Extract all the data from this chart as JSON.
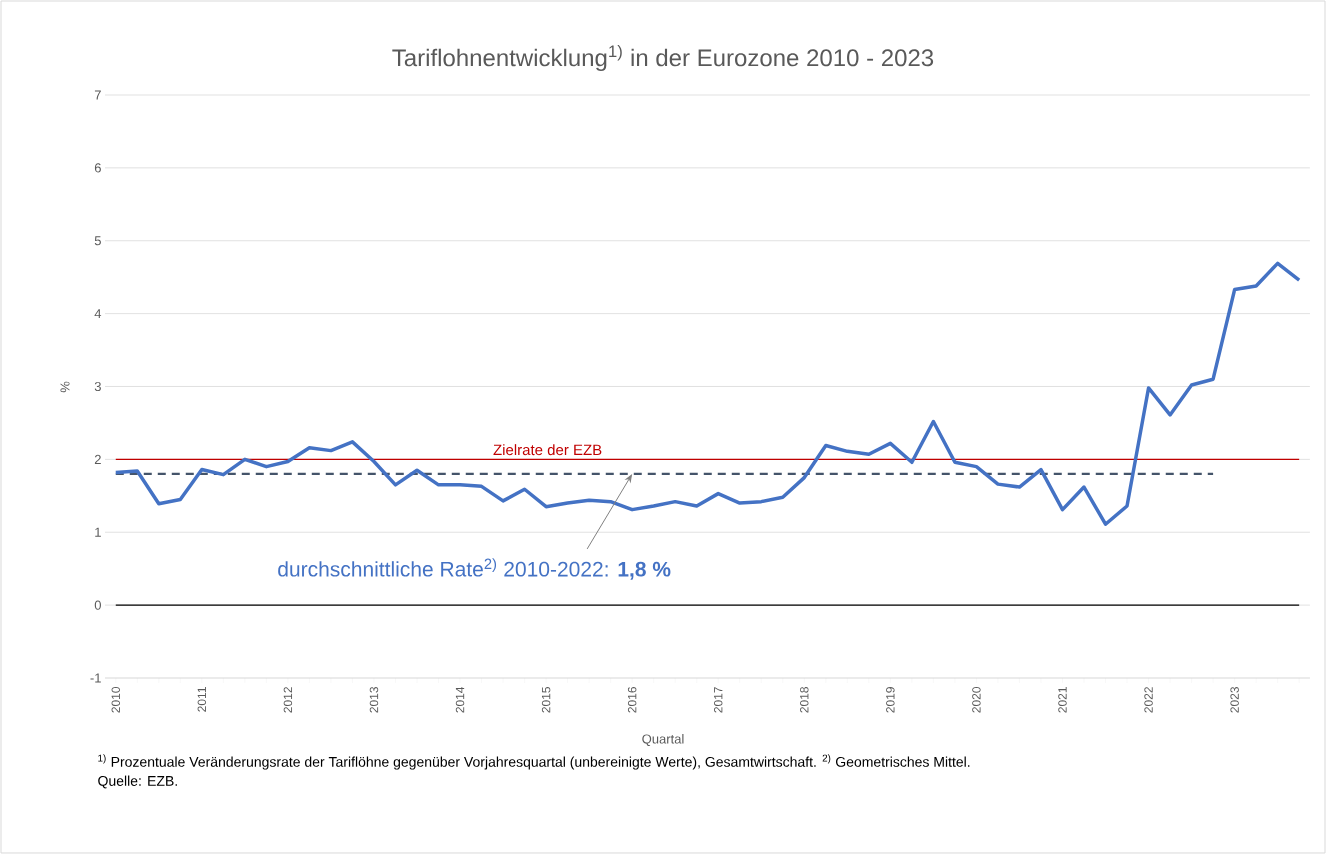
{
  "chart_data": {
    "type": "line",
    "title": "Tariflohnentwicklung$^{1)}$ in der Eurozone 2010 - 2023",
    "xlabel": "Quartal",
    "ylabel": "%",
    "categories": [
      "2010",
      null,
      null,
      null,
      "2011",
      null,
      null,
      null,
      "2012",
      null,
      null,
      null,
      "2013",
      null,
      null,
      null,
      "2014",
      null,
      null,
      null,
      "2015",
      null,
      null,
      null,
      "2016",
      null,
      null,
      null,
      "2017",
      null,
      null,
      null,
      "2018",
      null,
      null,
      null,
      "2019",
      null,
      null,
      null,
      "2020",
      null,
      null,
      null,
      "2021",
      null,
      null,
      null,
      "2022",
      null,
      null,
      null,
      "2023",
      null,
      null,
      null
    ],
    "series": [
      {
        "color": "#4472c4",
        "values": [
          1.82,
          1.84,
          1.39,
          1.45,
          1.86,
          1.79,
          2.0,
          1.9,
          1.97,
          2.16,
          2.12,
          2.24,
          1.97,
          1.65,
          1.85,
          1.65,
          1.65,
          1.63,
          1.43,
          1.59,
          1.35,
          1.4,
          1.44,
          1.42,
          1.31,
          1.36,
          1.42,
          1.36,
          1.53,
          1.4,
          1.42,
          1.48,
          1.75,
          2.19,
          2.11,
          2.07,
          2.22,
          1.96,
          2.52,
          1.96,
          1.9,
          1.66,
          1.62,
          1.86,
          1.31,
          1.62,
          1.11,
          1.36,
          2.98,
          2.61,
          3.02,
          3.1,
          4.33,
          4.38,
          4.69,
          4.46
        ]
      },
      {
        "color": "#44546a",
        "line_style": "dashed",
        "values": [
          1.8,
          1.8,
          1.8,
          1.8,
          1.8,
          1.8,
          1.8,
          1.8,
          1.8,
          1.8,
          1.8,
          1.8,
          1.8,
          1.8,
          1.8,
          1.8,
          1.8,
          1.8,
          1.8,
          1.8,
          1.8,
          1.8,
          1.8,
          1.8,
          1.8,
          1.8,
          1.8,
          1.8,
          1.8,
          1.8,
          1.8,
          1.8,
          1.8,
          1.8,
          1.8,
          1.8,
          1.8,
          1.8,
          1.8,
          1.8,
          1.8,
          1.8,
          1.8,
          1.8,
          1.8,
          1.8,
          1.8,
          1.8,
          1.8,
          1.8,
          1.8,
          1.8,
          null,
          null,
          null,
          null
        ]
      }
    ],
    "ylim": [
      -1,
      7
    ],
    "yticks": [
      -1,
      0,
      1,
      2,
      3,
      4,
      5,
      6,
      7
    ],
    "grid": "y",
    "marker": "none",
    "ref_lines": [
      {
        "axis": "y",
        "value": 2,
        "label": "Zielrate der EZB",
        "color": "#c00000"
      },
      {
        "axis": "y",
        "value": 0,
        "color": "#000000"
      }
    ],
    "annotations": [
      {
        "text": "durchschnittliche Rate$^{2)}$ 2010-2022: **1,8 %**",
        "x": "2016",
        "y": 1.8
      },
      "$^{1)}$ Prozentuale Veränderungsrate der Tariflöhne gegenüber Vorjahresquartal (unbereinigte Werte), Gesamtwirtschaft. $^{2)}$ Geometrisches Mittel.",
      "Quelle: EZB."
    ]
  }
}
